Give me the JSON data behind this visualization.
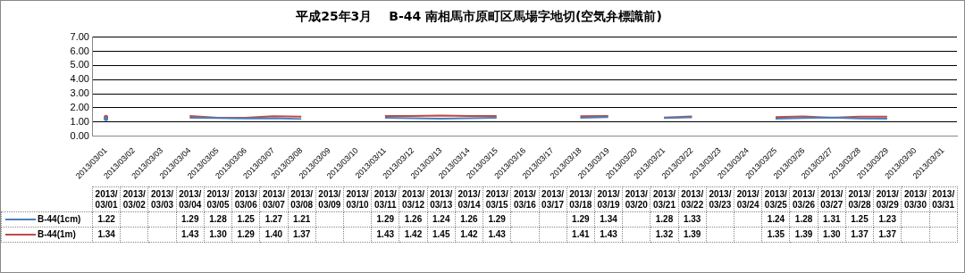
{
  "chart_data": {
    "type": "line",
    "title": "平成25年3月　 B-44 南相馬市原町区馬場字地切(空気弁標識前)",
    "categories": [
      "2013/03/01",
      "2013/03/02",
      "2013/03/03",
      "2013/03/04",
      "2013/03/05",
      "2013/03/06",
      "2013/03/07",
      "2013/03/08",
      "2013/03/09",
      "2013/03/10",
      "2013/03/11",
      "2013/03/12",
      "2013/03/13",
      "2013/03/14",
      "2013/03/15",
      "2013/03/16",
      "2013/03/17",
      "2013/03/18",
      "2013/03/19",
      "2013/03/20",
      "2013/03/21",
      "2013/03/22",
      "2013/03/23",
      "2013/03/24",
      "2013/03/25",
      "2013/03/26",
      "2013/03/27",
      "2013/03/28",
      "2013/03/29",
      "2013/03/30",
      "2013/03/31"
    ],
    "series": [
      {
        "name": "B-44(1cm)",
        "color": "#4a7ebb",
        "values": [
          1.22,
          null,
          null,
          1.29,
          1.28,
          1.25,
          1.27,
          1.21,
          null,
          null,
          1.29,
          1.26,
          1.24,
          1.26,
          1.29,
          null,
          null,
          1.29,
          1.34,
          null,
          1.28,
          1.33,
          null,
          null,
          1.24,
          1.28,
          1.31,
          1.25,
          1.23,
          null,
          null
        ],
        "value_labels": [
          "1.22",
          null,
          null,
          "1.29",
          "1.28",
          "1.25",
          "1.27",
          "1.21",
          null,
          null,
          "1.29",
          "1.26",
          "1.24",
          "1.26",
          "1.29",
          null,
          null,
          "1.29",
          "1.34",
          null,
          "1.28",
          "1.33",
          null,
          null,
          "1.24",
          "1.28",
          "1.31",
          "1.25",
          "1.23",
          null,
          null
        ]
      },
      {
        "name": "B-44(1m)",
        "color": "#be4b48",
        "values": [
          1.34,
          null,
          null,
          1.43,
          1.3,
          1.29,
          1.4,
          1.37,
          null,
          null,
          1.43,
          1.42,
          1.45,
          1.42,
          1.43,
          null,
          null,
          1.41,
          1.43,
          null,
          1.32,
          1.39,
          null,
          null,
          1.35,
          1.39,
          1.3,
          1.37,
          1.37,
          null,
          null
        ],
        "value_labels": [
          "1.34",
          null,
          null,
          "1.43",
          "1.30",
          "1.29",
          "1.40",
          "1.37",
          null,
          null,
          "1.43",
          "1.42",
          "1.45",
          "1.42",
          "1.43",
          null,
          null,
          "1.41",
          "1.43",
          null,
          "1.32",
          "1.39",
          null,
          null,
          "1.35",
          "1.39",
          "1.30",
          "1.37",
          "1.37",
          null,
          null
        ]
      }
    ],
    "ylim": [
      0,
      7
    ],
    "yticks": [
      {
        "value": 0,
        "label": "0.00"
      },
      {
        "value": 1,
        "label": "1.00"
      },
      {
        "value": 2,
        "label": "2.00"
      },
      {
        "value": 3,
        "label": "3.00"
      },
      {
        "value": 4,
        "label": "4.00"
      },
      {
        "value": 5,
        "label": "5.00"
      },
      {
        "value": 6,
        "label": "6.00"
      },
      {
        "value": 7,
        "label": "7.00"
      }
    ],
    "grid": "y",
    "legend": "bottom",
    "marker": "none",
    "line_style": "solid"
  }
}
